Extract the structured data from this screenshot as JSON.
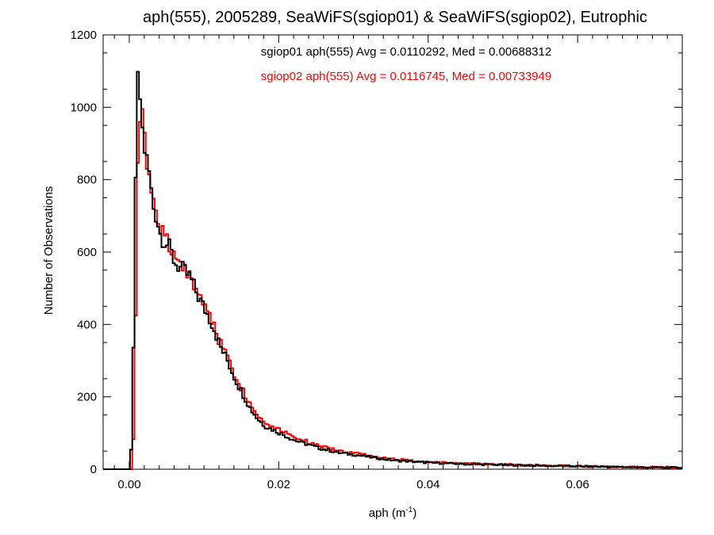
{
  "chart_data": {
    "type": "line",
    "title": "aph(555), 2005289, SeaWiFS(sgiop01) & SeaWiFS(sgiop02), Eutrophic",
    "xlabel": "aph (m",
    "xlabel_sup": "-1",
    "xlabel_close": ")",
    "ylabel": "Number of Observations",
    "xlim": [
      -0.0035,
      0.074
    ],
    "ylim": [
      0,
      1200
    ],
    "xticks": [
      0.0,
      0.02,
      0.04,
      0.06
    ],
    "xtick_labels": [
      "0.00",
      "0.02",
      "0.04",
      "0.06"
    ],
    "yticks": [
      0,
      200,
      400,
      600,
      800,
      1000,
      1200
    ],
    "ytick_labels": [
      "0",
      "200",
      "400",
      "600",
      "800",
      "1000",
      "1200"
    ],
    "grid": false,
    "step_style": "histogram",
    "annotations": [
      {
        "text": "sgiop01 aph(555) Avg = 0.0110292, Med = 0.00688312",
        "color": "#000000"
      },
      {
        "text": "sgiop02 aph(555) Avg = 0.0116745, Med = 0.00733949",
        "color": "#ff0000"
      }
    ],
    "series": [
      {
        "color": "#000000",
        "points": [
          [
            -0.0035,
            0
          ],
          [
            0.0,
            0
          ],
          [
            0.0003,
            150
          ],
          [
            0.0006,
            680
          ],
          [
            0.0009,
            1070
          ],
          [
            0.0012,
            1065
          ],
          [
            0.0015,
            950
          ],
          [
            0.002,
            870
          ],
          [
            0.0025,
            820
          ],
          [
            0.003,
            730
          ],
          [
            0.0035,
            700
          ],
          [
            0.004,
            650
          ],
          [
            0.005,
            620
          ],
          [
            0.006,
            570
          ],
          [
            0.007,
            550
          ],
          [
            0.008,
            530
          ],
          [
            0.009,
            480
          ],
          [
            0.01,
            440
          ],
          [
            0.011,
            400
          ],
          [
            0.012,
            340
          ],
          [
            0.013,
            300
          ],
          [
            0.014,
            250
          ],
          [
            0.015,
            210
          ],
          [
            0.016,
            170
          ],
          [
            0.017,
            140
          ],
          [
            0.018,
            120
          ],
          [
            0.02,
            100
          ],
          [
            0.022,
            80
          ],
          [
            0.025,
            60
          ],
          [
            0.028,
            45
          ],
          [
            0.03,
            40
          ],
          [
            0.035,
            25
          ],
          [
            0.04,
            18
          ],
          [
            0.045,
            14
          ],
          [
            0.05,
            12
          ],
          [
            0.055,
            10
          ],
          [
            0.06,
            8
          ],
          [
            0.065,
            6
          ],
          [
            0.07,
            5
          ],
          [
            0.074,
            4
          ]
        ]
      },
      {
        "color": "#ff0000",
        "points": [
          [
            -0.0035,
            0
          ],
          [
            0.0,
            0
          ],
          [
            0.0003,
            0
          ],
          [
            0.0006,
            250
          ],
          [
            0.0009,
            760
          ],
          [
            0.0012,
            920
          ],
          [
            0.0015,
            1000
          ],
          [
            0.002,
            880
          ],
          [
            0.0025,
            800
          ],
          [
            0.003,
            760
          ],
          [
            0.0035,
            710
          ],
          [
            0.004,
            660
          ],
          [
            0.005,
            620
          ],
          [
            0.006,
            580
          ],
          [
            0.007,
            560
          ],
          [
            0.008,
            530
          ],
          [
            0.009,
            490
          ],
          [
            0.01,
            450
          ],
          [
            0.011,
            410
          ],
          [
            0.012,
            350
          ],
          [
            0.013,
            310
          ],
          [
            0.014,
            260
          ],
          [
            0.015,
            220
          ],
          [
            0.016,
            180
          ],
          [
            0.017,
            150
          ],
          [
            0.018,
            130
          ],
          [
            0.02,
            110
          ],
          [
            0.022,
            90
          ],
          [
            0.025,
            65
          ],
          [
            0.028,
            50
          ],
          [
            0.03,
            45
          ],
          [
            0.035,
            28
          ],
          [
            0.04,
            20
          ],
          [
            0.045,
            16
          ],
          [
            0.05,
            13
          ],
          [
            0.055,
            10
          ],
          [
            0.06,
            8
          ],
          [
            0.065,
            7
          ],
          [
            0.07,
            5
          ],
          [
            0.074,
            4
          ]
        ]
      }
    ]
  }
}
